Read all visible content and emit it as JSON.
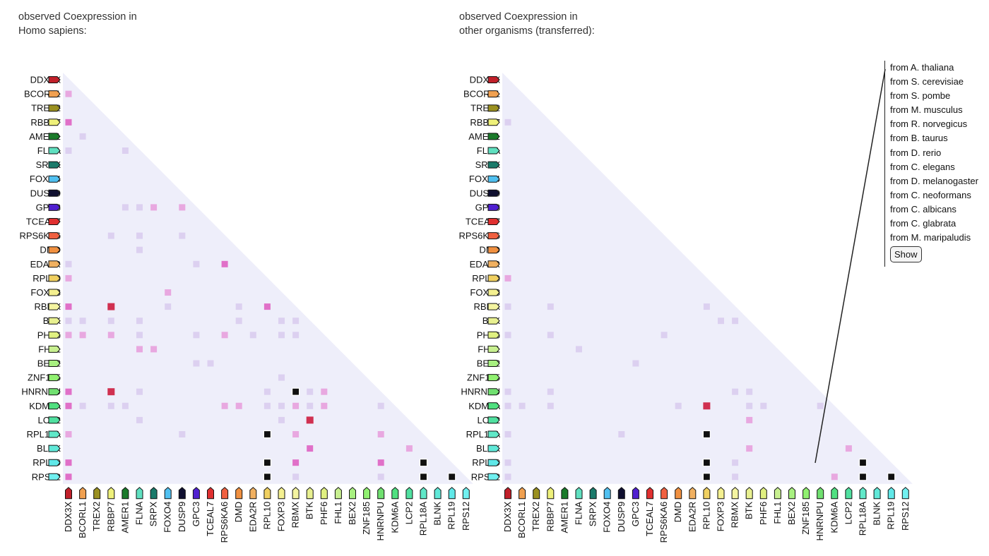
{
  "panels": {
    "left": {
      "title_line1": "observed Coexpression in",
      "title_line2": "Homo sapiens:"
    },
    "right": {
      "title_line1": "observed Coexpression in",
      "title_line2": "other organisms (transferred):"
    }
  },
  "genes": [
    {
      "name": "DDX3X",
      "color": "#c0202a"
    },
    {
      "name": "BCORL1",
      "color": "#f0a050"
    },
    {
      "name": "TREX2",
      "color": "#9a9020"
    },
    {
      "name": "RBBP7",
      "color": "#eef07a"
    },
    {
      "name": "AMER1",
      "color": "#1a7a2a"
    },
    {
      "name": "FLNA",
      "color": "#60e0c0"
    },
    {
      "name": "SRPX",
      "color": "#1a7a6a"
    },
    {
      "name": "FOXO4",
      "color": "#50c0f0"
    },
    {
      "name": "DUSP9",
      "color": "#101030"
    },
    {
      "name": "GPC3",
      "color": "#5020d0"
    },
    {
      "name": "TCEAL7",
      "color": "#e03030"
    },
    {
      "name": "RPS6KA6",
      "color": "#f06040"
    },
    {
      "name": "DMD",
      "color": "#f09040"
    },
    {
      "name": "EDA2R",
      "color": "#f0b060"
    },
    {
      "name": "RPL10",
      "color": "#f0d060"
    },
    {
      "name": "FOXP3",
      "color": "#f4f090"
    },
    {
      "name": "RBMX",
      "color": "#f4f4a0"
    },
    {
      "name": "BTK",
      "color": "#e8f090"
    },
    {
      "name": "PHF6",
      "color": "#e0f080"
    },
    {
      "name": "FHL1",
      "color": "#c8f090"
    },
    {
      "name": "BEX2",
      "color": "#a8f080"
    },
    {
      "name": "ZNF185",
      "color": "#90f070"
    },
    {
      "name": "HNRNPU",
      "color": "#70e070"
    },
    {
      "name": "KDM6A",
      "color": "#50e080"
    },
    {
      "name": "LCP2",
      "color": "#50e0a0"
    },
    {
      "name": "RPL18A",
      "color": "#60e8c8"
    },
    {
      "name": "BLNK",
      "color": "#60e8d8"
    },
    {
      "name": "RPL19",
      "color": "#60e8e8"
    },
    {
      "name": "RPS12",
      "color": "#70f0f0"
    }
  ],
  "color_scale": {
    "background": "#eeeefa",
    "weak": "#dcd0f0",
    "light": "#e8a8e0",
    "medium": "#e070c8",
    "strong": "#d03050",
    "max": "#101010"
  },
  "matrices": {
    "homo_sapiens": [
      [
        1,
        0,
        "light"
      ],
      [
        3,
        0,
        "medium"
      ],
      [
        4,
        1,
        "weak"
      ],
      [
        5,
        0,
        "weak"
      ],
      [
        5,
        4,
        "weak"
      ],
      [
        9,
        4,
        "weak"
      ],
      [
        9,
        5,
        "weak"
      ],
      [
        9,
        6,
        "light"
      ],
      [
        9,
        8,
        "light"
      ],
      [
        11,
        3,
        "weak"
      ],
      [
        11,
        5,
        "weak"
      ],
      [
        11,
        8,
        "weak"
      ],
      [
        12,
        5,
        "weak"
      ],
      [
        13,
        0,
        "weak"
      ],
      [
        13,
        9,
        "weak"
      ],
      [
        13,
        11,
        "medium"
      ],
      [
        14,
        0,
        "light"
      ],
      [
        15,
        7,
        "light"
      ],
      [
        16,
        0,
        "medium"
      ],
      [
        16,
        3,
        "strong"
      ],
      [
        16,
        7,
        "weak"
      ],
      [
        16,
        12,
        "weak"
      ],
      [
        16,
        14,
        "medium"
      ],
      [
        17,
        0,
        "weak"
      ],
      [
        17,
        1,
        "weak"
      ],
      [
        17,
        3,
        "weak"
      ],
      [
        17,
        5,
        "weak"
      ],
      [
        17,
        12,
        "weak"
      ],
      [
        17,
        15,
        "weak"
      ],
      [
        17,
        16,
        "weak"
      ],
      [
        18,
        0,
        "light"
      ],
      [
        18,
        1,
        "light"
      ],
      [
        18,
        3,
        "light"
      ],
      [
        18,
        5,
        "weak"
      ],
      [
        18,
        9,
        "weak"
      ],
      [
        18,
        11,
        "light"
      ],
      [
        18,
        13,
        "weak"
      ],
      [
        18,
        15,
        "weak"
      ],
      [
        18,
        16,
        "weak"
      ],
      [
        19,
        5,
        "light"
      ],
      [
        19,
        6,
        "light"
      ],
      [
        20,
        9,
        "weak"
      ],
      [
        20,
        10,
        "weak"
      ],
      [
        21,
        15,
        "weak"
      ],
      [
        22,
        0,
        "medium"
      ],
      [
        22,
        3,
        "strong"
      ],
      [
        22,
        5,
        "weak"
      ],
      [
        22,
        14,
        "weak"
      ],
      [
        22,
        16,
        "max"
      ],
      [
        22,
        17,
        "weak"
      ],
      [
        22,
        18,
        "light"
      ],
      [
        23,
        0,
        "medium"
      ],
      [
        23,
        1,
        "weak"
      ],
      [
        23,
        3,
        "weak"
      ],
      [
        23,
        4,
        "weak"
      ],
      [
        23,
        11,
        "light"
      ],
      [
        23,
        12,
        "light"
      ],
      [
        23,
        14,
        "weak"
      ],
      [
        23,
        15,
        "weak"
      ],
      [
        23,
        16,
        "light"
      ],
      [
        23,
        17,
        "weak"
      ],
      [
        23,
        18,
        "light"
      ],
      [
        23,
        22,
        "weak"
      ],
      [
        24,
        5,
        "weak"
      ],
      [
        24,
        15,
        "weak"
      ],
      [
        24,
        17,
        "strong"
      ],
      [
        25,
        0,
        "light"
      ],
      [
        25,
        8,
        "weak"
      ],
      [
        25,
        14,
        "max"
      ],
      [
        25,
        16,
        "light"
      ],
      [
        25,
        22,
        "light"
      ],
      [
        26,
        17,
        "medium"
      ],
      [
        26,
        24,
        "light"
      ],
      [
        27,
        0,
        "medium"
      ],
      [
        27,
        14,
        "max"
      ],
      [
        27,
        16,
        "medium"
      ],
      [
        27,
        22,
        "medium"
      ],
      [
        27,
        25,
        "max"
      ],
      [
        28,
        0,
        "medium"
      ],
      [
        28,
        14,
        "max"
      ],
      [
        28,
        16,
        "weak"
      ],
      [
        28,
        22,
        "weak"
      ],
      [
        28,
        25,
        "max"
      ],
      [
        28,
        27,
        "max"
      ]
    ],
    "other_organisms": [
      [
        3,
        0,
        "weak"
      ],
      [
        14,
        0,
        "light"
      ],
      [
        16,
        0,
        "weak"
      ],
      [
        16,
        3,
        "weak"
      ],
      [
        16,
        14,
        "weak"
      ],
      [
        17,
        15,
        "weak"
      ],
      [
        17,
        16,
        "weak"
      ],
      [
        18,
        0,
        "weak"
      ],
      [
        18,
        3,
        "weak"
      ],
      [
        18,
        11,
        "weak"
      ],
      [
        19,
        5,
        "weak"
      ],
      [
        20,
        9,
        "weak"
      ],
      [
        22,
        0,
        "weak"
      ],
      [
        22,
        3,
        "weak"
      ],
      [
        22,
        16,
        "weak"
      ],
      [
        22,
        17,
        "weak"
      ],
      [
        23,
        0,
        "weak"
      ],
      [
        23,
        1,
        "weak"
      ],
      [
        23,
        3,
        "weak"
      ],
      [
        23,
        12,
        "weak"
      ],
      [
        23,
        14,
        "strong"
      ],
      [
        23,
        17,
        "weak"
      ],
      [
        23,
        18,
        "weak"
      ],
      [
        23,
        22,
        "weak"
      ],
      [
        24,
        17,
        "light"
      ],
      [
        25,
        0,
        "weak"
      ],
      [
        25,
        8,
        "weak"
      ],
      [
        25,
        14,
        "max"
      ],
      [
        26,
        17,
        "light"
      ],
      [
        26,
        24,
        "light"
      ],
      [
        27,
        0,
        "weak"
      ],
      [
        27,
        14,
        "max"
      ],
      [
        27,
        16,
        "weak"
      ],
      [
        27,
        25,
        "max"
      ],
      [
        28,
        0,
        "weak"
      ],
      [
        28,
        14,
        "max"
      ],
      [
        28,
        16,
        "weak"
      ],
      [
        28,
        23,
        "light"
      ],
      [
        28,
        25,
        "max"
      ],
      [
        28,
        27,
        "max"
      ]
    ]
  },
  "organisms": {
    "items": [
      "from A. thaliana",
      "from S. cerevisiae",
      "from S. pombe",
      "from M. musculus",
      "from R. norvegicus",
      "from B. taurus",
      "from D. rerio",
      "from C. elegans",
      "from D. melanogaster",
      "from C. neoformans",
      "from C. albicans",
      "from C. glabrata",
      "from M. maripaludis"
    ],
    "show_label": "Show"
  }
}
